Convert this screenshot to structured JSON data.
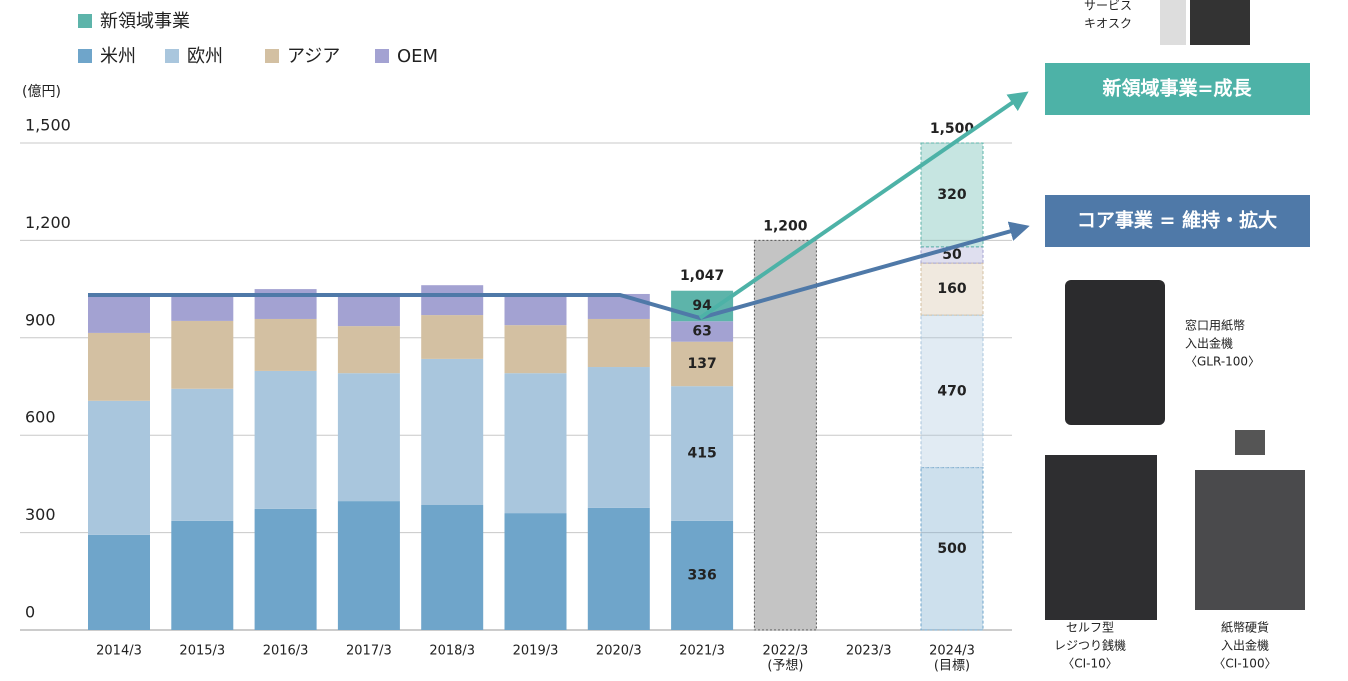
{
  "chart_data": {
    "type": "stacked_bar",
    "y_axis_label": "(億円)",
    "categories": [
      "2014/3",
      "2015/3",
      "2016/3",
      "2017/3",
      "2018/3",
      "2019/3",
      "2020/3",
      "2021/3",
      "2022/3",
      "2023/3",
      "2024/3"
    ],
    "category_sublabels": [
      null,
      null,
      null,
      null,
      null,
      null,
      null,
      null,
      "(予想)",
      null,
      "(目標)"
    ],
    "series": [
      {
        "name": "米州",
        "color": "#6fa5ca",
        "values": [
          293,
          336,
          373,
          397,
          385,
          360,
          376,
          336,
          null,
          null,
          500
        ]
      },
      {
        "name": "欧州",
        "color": "#a9c6dd",
        "values": [
          413,
          407,
          425,
          394,
          450,
          431,
          434,
          415,
          null,
          null,
          470
        ]
      },
      {
        "name": "アジア",
        "color": "#d3c0a2",
        "values": [
          209,
          209,
          160,
          145,
          135,
          148,
          148,
          137,
          null,
          null,
          160
        ]
      },
      {
        "name": "OEM",
        "color": "#a3a2d2",
        "values": [
          111,
          77,
          92,
          92,
          92,
          89,
          77,
          63,
          null,
          null,
          50
        ]
      },
      {
        "name": "新領域事業",
        "color": "#5db4aa",
        "values": [
          null,
          null,
          null,
          null,
          null,
          null,
          null,
          94,
          null,
          null,
          320
        ]
      }
    ],
    "totals": {
      "color": "#c4c4c4",
      "values": [
        null,
        null,
        null,
        null,
        null,
        null,
        null,
        1047,
        1200,
        null,
        1500
      ],
      "value_labels": [
        null,
        null,
        null,
        null,
        null,
        null,
        null,
        "1,047",
        "1,200",
        null,
        "1,500"
      ]
    },
    "data_labels_for": [
      "2021/3",
      "2024/3"
    ],
    "outlined_categories": [
      "2022/3",
      "2024/3"
    ],
    "ylim": [
      0,
      1500
    ],
    "yticks": [
      0,
      300,
      600,
      900,
      {
        "value": 1200,
        "label": "1,200"
      },
      {
        "value": 1500,
        "label": "1,500"
      }
    ],
    "grid": true,
    "annotations": {
      "growth": "新領域事業=成長",
      "core": "コア事業 = 維持・拡大"
    },
    "products": [
      {
        "lines": [
          "サービス",
          "キオスク"
        ]
      },
      {
        "lines": [
          "窓口用紙幣",
          "入出金機",
          "〈GLR-100〉"
        ]
      },
      {
        "lines": [
          "セルフ型",
          "レジつり銭機",
          "〈CI-10〉"
        ]
      },
      {
        "lines": [
          "紙幣硬貨",
          "入出金機",
          "〈CI-100〉"
        ]
      }
    ]
  }
}
